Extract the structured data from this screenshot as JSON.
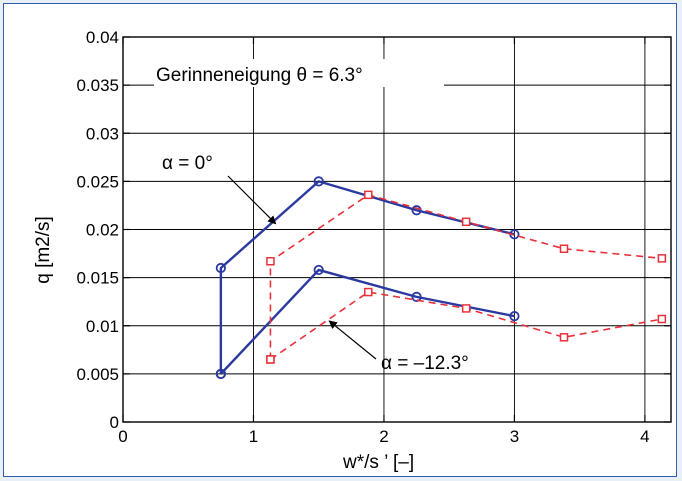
{
  "chart_data": {
    "type": "line",
    "title": "",
    "annotation": "Gerinneneigung θ = 6.3°",
    "xlabel": "w*/s ’  [–]",
    "ylabel": "q [m2/s]",
    "xlim": [
      0,
      4.2
    ],
    "ylim": [
      0,
      0.04
    ],
    "x_ticks": [
      "0",
      "1",
      "2",
      "3",
      "4"
    ],
    "y_ticks": [
      "0",
      "0.005",
      "0.01",
      "0.015",
      "0.02",
      "0.025",
      "0.03",
      "0.035",
      "0.04"
    ],
    "grid": true,
    "callouts": [
      {
        "id": "alpha0",
        "text": "α = 0°"
      },
      {
        "id": "alpha123",
        "text": "α = –12.3°"
      }
    ],
    "series": [
      {
        "id": "blue_alpha0",
        "color": "#2b3aa0",
        "style": "solid",
        "marker": "circle",
        "x": [
          0.75,
          0.75,
          1.5,
          2.25,
          3.0
        ],
        "y": [
          0.005,
          0.016,
          0.025,
          0.022,
          0.0195
        ]
      },
      {
        "id": "blue_alpha123",
        "color": "#2b3aa0",
        "style": "solid",
        "marker": "circle",
        "x": [
          0.75,
          1.5,
          2.25,
          3.0
        ],
        "y": [
          0.005,
          0.0158,
          0.013,
          0.011
        ]
      },
      {
        "id": "red_alpha0",
        "color": "#e8303a",
        "style": "dashed",
        "marker": "square",
        "x": [
          1.13,
          1.13,
          1.88,
          2.63,
          3.38,
          4.13
        ],
        "y": [
          0.0065,
          0.0167,
          0.0236,
          0.0208,
          0.018,
          0.017
        ]
      },
      {
        "id": "red_alpha123",
        "color": "#e8303a",
        "style": "dashed",
        "marker": "square",
        "x": [
          1.13,
          1.88,
          2.63,
          3.38,
          4.13
        ],
        "y": [
          0.0065,
          0.0135,
          0.0118,
          0.0088,
          0.0107
        ]
      }
    ]
  }
}
